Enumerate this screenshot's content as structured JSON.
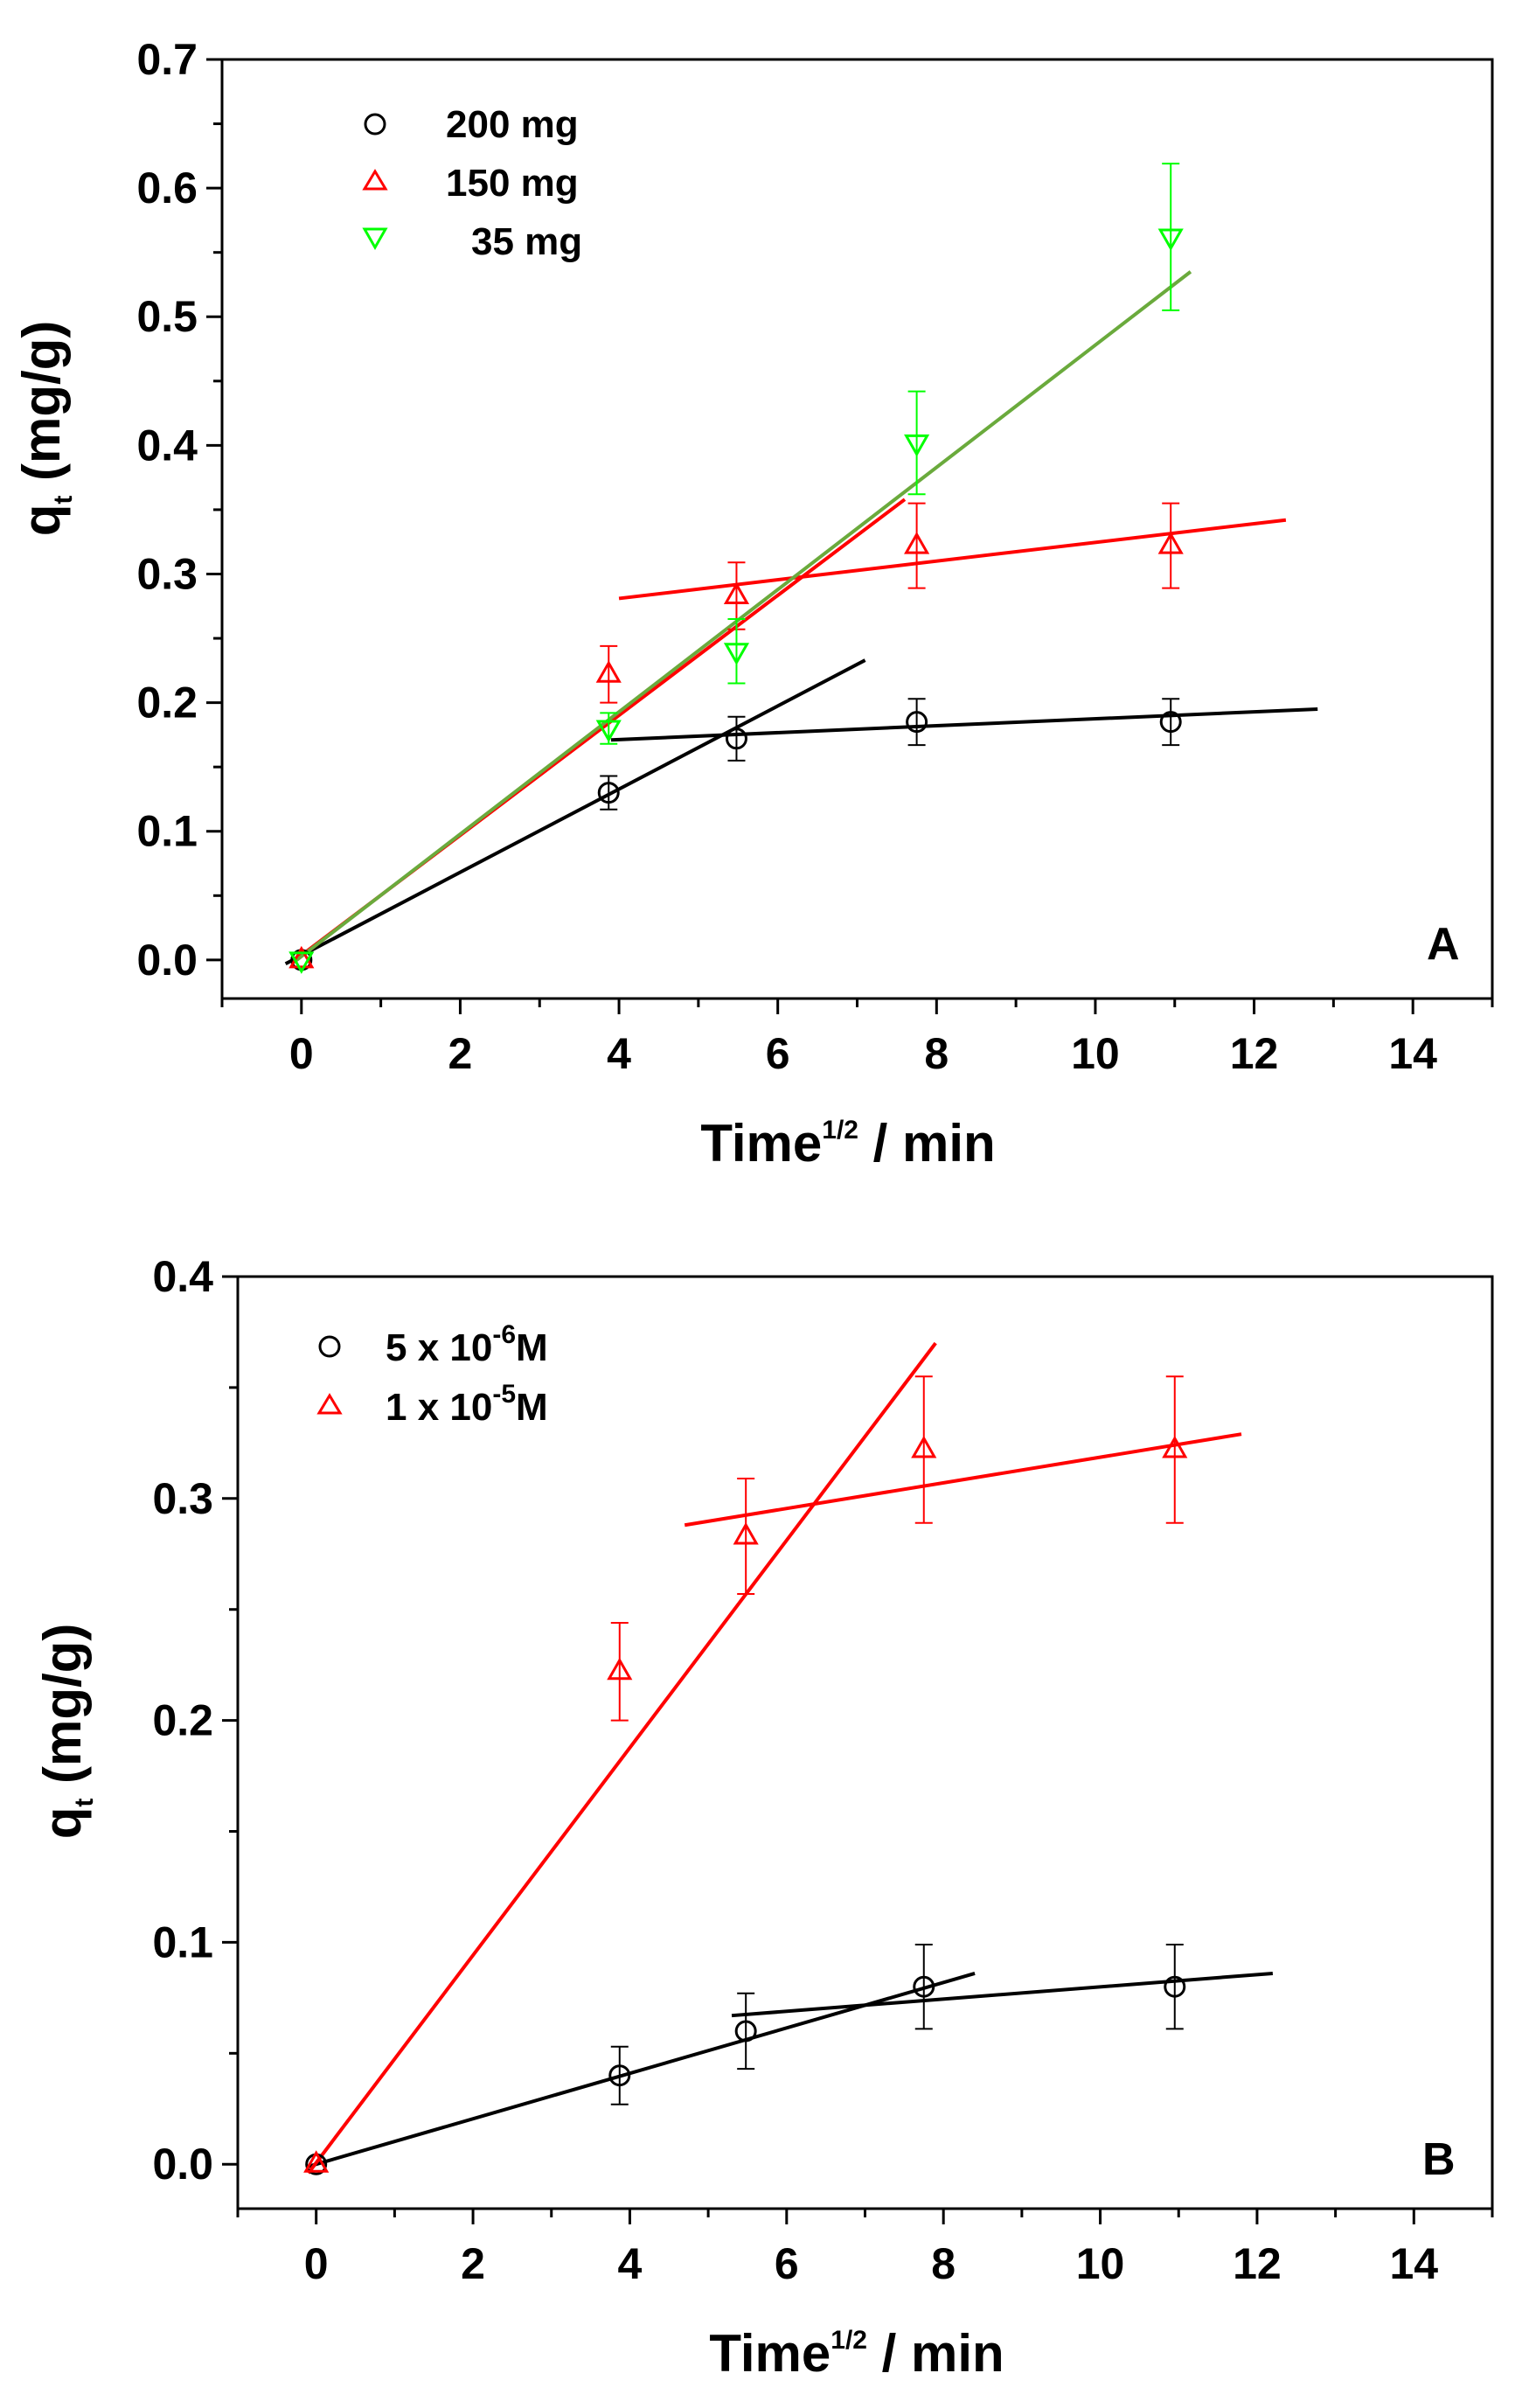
{
  "chart_data": [
    {
      "type": "scatter",
      "panel_label": "A",
      "xlabel": {
        "main": "Time",
        "sup": "1/2",
        "rest": " / min"
      },
      "ylabel": {
        "q": "q",
        "sub": "t",
        "rest": " (mg/g)"
      },
      "xlim": [
        -1,
        15
      ],
      "ylim": [
        -0.03,
        0.7
      ],
      "xticks": [
        "0",
        "2",
        "4",
        "6",
        "8",
        "10",
        "12",
        "14"
      ],
      "yticks": [
        "0.0",
        "0.1",
        "0.2",
        "0.3",
        "0.4",
        "0.5",
        "0.6",
        "0.7"
      ],
      "legend_position": "top-left",
      "series": [
        {
          "name": "200 mg",
          "color": "#000000",
          "marker": "circle",
          "x": [
            0,
            3.87,
            5.48,
            7.75,
            10.95
          ],
          "y": [
            0.0,
            0.13,
            0.172,
            0.185,
            0.185
          ],
          "err": [
            0,
            0.013,
            0.017,
            0.018,
            0.018
          ]
        },
        {
          "name": "150 mg",
          "color": "#ff0000",
          "marker": "triangle-up",
          "x": [
            0,
            3.87,
            5.48,
            7.75,
            10.95
          ],
          "y": [
            0.0,
            0.222,
            0.283,
            0.322,
            0.322
          ],
          "err": [
            0,
            0.022,
            0.026,
            0.033,
            0.033
          ]
        },
        {
          "name": "35 mg",
          "color": "#00ff00",
          "marker": "triangle-down",
          "x": [
            0,
            3.87,
            5.48,
            7.75,
            10.95
          ],
          "y": [
            0.0,
            0.18,
            0.24,
            0.402,
            0.562
          ],
          "err": [
            0,
            0.012,
            0.025,
            0.04,
            0.057
          ]
        }
      ],
      "fit_lines": [
        {
          "series": "200 mg",
          "color": "#000000",
          "x": [
            -0.2,
            7.1
          ],
          "y": [
            -0.003,
            0.233
          ]
        },
        {
          "series": "200 mg",
          "color": "#000000",
          "x": [
            3.9,
            12.8
          ],
          "y": [
            0.171,
            0.195
          ]
        },
        {
          "series": "150 mg",
          "color": "#ff0000",
          "x": [
            -0.1,
            7.6
          ],
          "y": [
            -0.001,
            0.358
          ]
        },
        {
          "series": "150 mg",
          "color": "#ff0000",
          "x": [
            4.0,
            12.4
          ],
          "y": [
            0.281,
            0.342
          ]
        },
        {
          "series": "35 mg",
          "color": "#6aaa3c",
          "x": [
            -0.1,
            11.2
          ],
          "y": [
            -0.002,
            0.535
          ]
        }
      ]
    },
    {
      "type": "scatter",
      "panel_label": "B",
      "xlabel": {
        "main": "Time",
        "sup": "1/2",
        "rest": " / min"
      },
      "ylabel": {
        "q": "q",
        "sub": "t",
        "rest": " (mg/g)"
      },
      "xlim": [
        -1,
        15
      ],
      "ylim": [
        -0.02,
        0.4
      ],
      "xticks": [
        "0",
        "2",
        "4",
        "6",
        "8",
        "10",
        "12",
        "14"
      ],
      "yticks": [
        "0.0",
        "0.1",
        "0.2",
        "0.3",
        "0.4"
      ],
      "legend_position": "top-left",
      "series": [
        {
          "name": "5 x 10-6M",
          "label_base": "5 x 10",
          "label_exp": "-6",
          "label_tail": "M",
          "color": "#000000",
          "marker": "circle",
          "x": [
            0,
            3.87,
            5.48,
            7.75,
            10.95
          ],
          "y": [
            0.0,
            0.04,
            0.06,
            0.08,
            0.08
          ],
          "err": [
            0,
            0.013,
            0.017,
            0.019,
            0.019
          ]
        },
        {
          "name": "1 x 10-5M",
          "label_base": "1 x 10",
          "label_exp": "-5",
          "label_tail": "M",
          "color": "#ff0000",
          "marker": "triangle-up",
          "x": [
            0,
            3.87,
            5.48,
            7.75,
            10.95
          ],
          "y": [
            0.0,
            0.222,
            0.283,
            0.322,
            0.322
          ],
          "err": [
            0,
            0.022,
            0.026,
            0.033,
            0.033
          ]
        }
      ],
      "fit_lines": [
        {
          "series": "5 x 10-6M",
          "color": "#000000",
          "x": [
            -0.1,
            8.4
          ],
          "y": [
            -0.001,
            0.086
          ]
        },
        {
          "series": "5 x 10-6M",
          "color": "#000000",
          "x": [
            5.3,
            12.2
          ],
          "y": [
            0.067,
            0.086
          ]
        },
        {
          "series": "1 x 10-5M",
          "color": "#ff0000",
          "x": [
            -0.1,
            7.9
          ],
          "y": [
            -0.004,
            0.37
          ]
        },
        {
          "series": "1 x 10-5M",
          "color": "#ff0000",
          "x": [
            4.7,
            11.8
          ],
          "y": [
            0.288,
            0.329
          ]
        }
      ]
    }
  ]
}
